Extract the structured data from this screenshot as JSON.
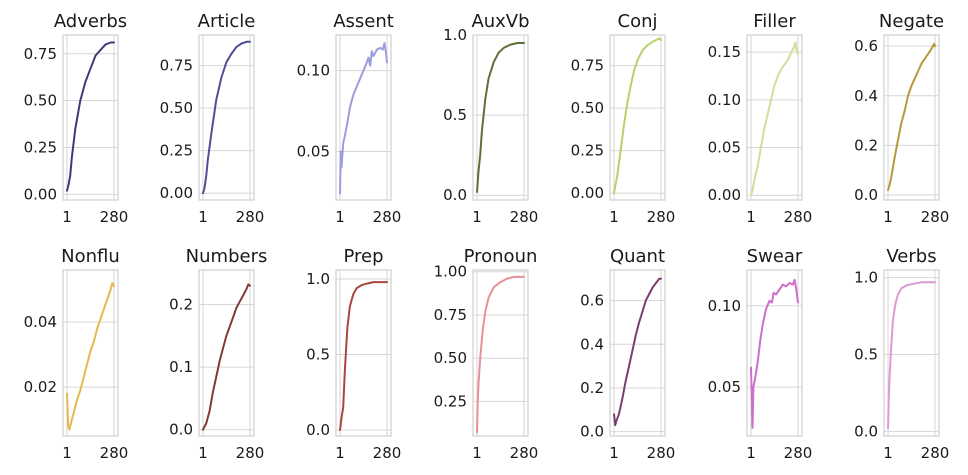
{
  "chart_data": [
    {
      "type": "line",
      "title": "Adverbs",
      "x_ticks": [
        "1",
        "280"
      ],
      "yticks": [
        "0.00",
        "0.25",
        "0.50",
        "0.75"
      ],
      "ylim": [
        -0.03,
        0.85
      ],
      "color": "#3b3b7a",
      "points": [
        [
          1,
          0.02
        ],
        [
          10,
          0.05
        ],
        [
          20,
          0.1
        ],
        [
          30,
          0.2
        ],
        [
          50,
          0.35
        ],
        [
          80,
          0.5
        ],
        [
          110,
          0.6
        ],
        [
          140,
          0.67
        ],
        [
          170,
          0.74
        ],
        [
          200,
          0.77
        ],
        [
          230,
          0.8
        ],
        [
          260,
          0.81
        ],
        [
          280,
          0.81
        ]
      ]
    },
    {
      "type": "line",
      "title": "Article",
      "x_ticks": [
        "1",
        "280"
      ],
      "yticks": [
        "0.00",
        "0.25",
        "0.50",
        "0.75"
      ],
      "ylim": [
        -0.04,
        0.93
      ],
      "color": "#4e4f95",
      "points": [
        [
          1,
          0.0
        ],
        [
          10,
          0.03
        ],
        [
          20,
          0.1
        ],
        [
          30,
          0.2
        ],
        [
          50,
          0.35
        ],
        [
          80,
          0.55
        ],
        [
          110,
          0.68
        ],
        [
          140,
          0.77
        ],
        [
          170,
          0.82
        ],
        [
          200,
          0.86
        ],
        [
          230,
          0.88
        ],
        [
          260,
          0.89
        ],
        [
          280,
          0.89
        ]
      ]
    },
    {
      "type": "line",
      "title": "Assent",
      "x_ticks": [
        "1",
        "280"
      ],
      "yticks": [
        "0.05",
        "0.10"
      ],
      "ylim": [
        0.02,
        0.122
      ],
      "color": "#9b9ddf",
      "points": [
        [
          1,
          0.024
        ],
        [
          5,
          0.05
        ],
        [
          10,
          0.04
        ],
        [
          20,
          0.055
        ],
        [
          40,
          0.065
        ],
        [
          60,
          0.077
        ],
        [
          80,
          0.085
        ],
        [
          100,
          0.09
        ],
        [
          120,
          0.095
        ],
        [
          140,
          0.1
        ],
        [
          160,
          0.105
        ],
        [
          170,
          0.108
        ],
        [
          180,
          0.103
        ],
        [
          190,
          0.112
        ],
        [
          200,
          0.109
        ],
        [
          220,
          0.113
        ],
        [
          240,
          0.114
        ],
        [
          255,
          0.113
        ],
        [
          265,
          0.117
        ],
        [
          275,
          0.11
        ],
        [
          280,
          0.105
        ]
      ]
    },
    {
      "type": "line",
      "title": "AuxVb",
      "x_ticks": [
        "1",
        "280"
      ],
      "yticks": [
        "0.0",
        "0.5",
        "1.0"
      ],
      "ylim": [
        -0.03,
        1.0
      ],
      "color": "#5c7138",
      "points": [
        [
          1,
          0.02
        ],
        [
          10,
          0.15
        ],
        [
          20,
          0.25
        ],
        [
          30,
          0.4
        ],
        [
          50,
          0.6
        ],
        [
          70,
          0.73
        ],
        [
          100,
          0.83
        ],
        [
          130,
          0.89
        ],
        [
          160,
          0.92
        ],
        [
          200,
          0.94
        ],
        [
          240,
          0.95
        ],
        [
          280,
          0.95
        ]
      ]
    },
    {
      "type": "line",
      "title": "Conj",
      "x_ticks": [
        "1",
        "280"
      ],
      "yticks": [
        "0.00",
        "0.25",
        "0.50",
        "0.75"
      ],
      "ylim": [
        -0.04,
        0.93
      ],
      "color": "#b5d26b",
      "points": [
        [
          1,
          0.0
        ],
        [
          10,
          0.05
        ],
        [
          20,
          0.1
        ],
        [
          40,
          0.25
        ],
        [
          60,
          0.4
        ],
        [
          80,
          0.53
        ],
        [
          100,
          0.63
        ],
        [
          120,
          0.72
        ],
        [
          140,
          0.78
        ],
        [
          170,
          0.84
        ],
        [
          200,
          0.87
        ],
        [
          230,
          0.89
        ],
        [
          250,
          0.9
        ],
        [
          270,
          0.91
        ],
        [
          280,
          0.9
        ]
      ]
    },
    {
      "type": "line",
      "title": "Filler",
      "x_ticks": [
        "1",
        "280"
      ],
      "yticks": [
        "0.00",
        "0.05",
        "0.10",
        "0.15"
      ],
      "ylim": [
        -0.005,
        0.168
      ],
      "color": "#cfdf9a",
      "points": [
        [
          1,
          0.0
        ],
        [
          10,
          0.005
        ],
        [
          20,
          0.015
        ],
        [
          40,
          0.03
        ],
        [
          60,
          0.05
        ],
        [
          80,
          0.07
        ],
        [
          100,
          0.085
        ],
        [
          120,
          0.1
        ],
        [
          140,
          0.115
        ],
        [
          160,
          0.125
        ],
        [
          180,
          0.132
        ],
        [
          200,
          0.137
        ],
        [
          220,
          0.142
        ],
        [
          240,
          0.15
        ],
        [
          255,
          0.155
        ],
        [
          265,
          0.16
        ],
        [
          272,
          0.152
        ],
        [
          280,
          0.148
        ]
      ]
    },
    {
      "type": "line",
      "title": "Negate",
      "x_ticks": [
        "1",
        "280"
      ],
      "yticks": [
        "0.0",
        "0.2",
        "0.4",
        "0.6"
      ],
      "ylim": [
        -0.02,
        0.645
      ],
      "color": "#b8993a",
      "points": [
        [
          1,
          0.02
        ],
        [
          10,
          0.04
        ],
        [
          20,
          0.07
        ],
        [
          40,
          0.15
        ],
        [
          60,
          0.22
        ],
        [
          80,
          0.29
        ],
        [
          100,
          0.34
        ],
        [
          120,
          0.4
        ],
        [
          140,
          0.44
        ],
        [
          160,
          0.47
        ],
        [
          180,
          0.5
        ],
        [
          200,
          0.53
        ],
        [
          220,
          0.55
        ],
        [
          240,
          0.57
        ],
        [
          260,
          0.59
        ],
        [
          275,
          0.61
        ],
        [
          280,
          0.6
        ]
      ]
    },
    {
      "type": "line",
      "title": "Nonflu",
      "x_ticks": [
        "1",
        "280"
      ],
      "yticks": [
        "0.02",
        "0.04"
      ],
      "ylim": [
        0.005,
        0.056
      ],
      "color": "#e5b94f",
      "points": [
        [
          1,
          0.018
        ],
        [
          8,
          0.008
        ],
        [
          15,
          0.007
        ],
        [
          25,
          0.009
        ],
        [
          40,
          0.012
        ],
        [
          60,
          0.016
        ],
        [
          80,
          0.019
        ],
        [
          100,
          0.023
        ],
        [
          120,
          0.027
        ],
        [
          140,
          0.031
        ],
        [
          160,
          0.034
        ],
        [
          180,
          0.038
        ],
        [
          200,
          0.041
        ],
        [
          220,
          0.044
        ],
        [
          240,
          0.047
        ],
        [
          260,
          0.05
        ],
        [
          270,
          0.052
        ],
        [
          280,
          0.051
        ]
      ]
    },
    {
      "type": "line",
      "title": "Numbers",
      "x_ticks": [
        "1",
        "280"
      ],
      "yticks": [
        "0.0",
        "0.1",
        "0.2"
      ],
      "ylim": [
        -0.01,
        0.255
      ],
      "color": "#833a37",
      "points": [
        [
          1,
          0.0
        ],
        [
          10,
          0.005
        ],
        [
          20,
          0.01
        ],
        [
          40,
          0.03
        ],
        [
          60,
          0.06
        ],
        [
          80,
          0.085
        ],
        [
          100,
          0.11
        ],
        [
          120,
          0.13
        ],
        [
          140,
          0.15
        ],
        [
          160,
          0.165
        ],
        [
          180,
          0.18
        ],
        [
          200,
          0.195
        ],
        [
          220,
          0.205
        ],
        [
          240,
          0.215
        ],
        [
          260,
          0.225
        ],
        [
          270,
          0.232
        ],
        [
          280,
          0.23
        ]
      ]
    },
    {
      "type": "line",
      "title": "Prep",
      "x_ticks": [
        "1",
        "280"
      ],
      "yticks": [
        "0.0",
        "0.5",
        "1.0"
      ],
      "ylim": [
        -0.04,
        1.06
      ],
      "color": "#a8463f",
      "points": [
        [
          1,
          0.0
        ],
        [
          10,
          0.08
        ],
        [
          20,
          0.15
        ],
        [
          30,
          0.4
        ],
        [
          45,
          0.68
        ],
        [
          60,
          0.82
        ],
        [
          80,
          0.9
        ],
        [
          100,
          0.94
        ],
        [
          130,
          0.96
        ],
        [
          160,
          0.97
        ],
        [
          200,
          0.98
        ],
        [
          240,
          0.98
        ],
        [
          280,
          0.98
        ]
      ]
    },
    {
      "type": "line",
      "title": "Pronoun",
      "x_ticks": [
        "1",
        "280"
      ],
      "yticks": [
        "0.25",
        "0.50",
        "0.75",
        "1.00"
      ],
      "ylim": [
        0.05,
        1.01
      ],
      "color": "#e8909a",
      "points": [
        [
          1,
          0.07
        ],
        [
          5,
          0.25
        ],
        [
          10,
          0.35
        ],
        [
          20,
          0.5
        ],
        [
          35,
          0.66
        ],
        [
          50,
          0.77
        ],
        [
          70,
          0.85
        ],
        [
          100,
          0.91
        ],
        [
          140,
          0.94
        ],
        [
          180,
          0.96
        ],
        [
          220,
          0.97
        ],
        [
          260,
          0.97
        ],
        [
          280,
          0.97
        ]
      ]
    },
    {
      "type": "line",
      "title": "Quant",
      "x_ticks": [
        "1",
        "280"
      ],
      "yticks": [
        "0.0",
        "0.2",
        "0.4",
        "0.6"
      ],
      "ylim": [
        -0.02,
        0.74
      ],
      "color": "#7a3d71",
      "points": [
        [
          1,
          0.08
        ],
        [
          8,
          0.03
        ],
        [
          15,
          0.05
        ],
        [
          30,
          0.08
        ],
        [
          50,
          0.15
        ],
        [
          70,
          0.23
        ],
        [
          90,
          0.3
        ],
        [
          110,
          0.37
        ],
        [
          130,
          0.44
        ],
        [
          150,
          0.5
        ],
        [
          170,
          0.55
        ],
        [
          190,
          0.6
        ],
        [
          210,
          0.63
        ],
        [
          230,
          0.66
        ],
        [
          250,
          0.68
        ],
        [
          270,
          0.7
        ],
        [
          280,
          0.7
        ]
      ]
    },
    {
      "type": "line",
      "title": "Swear",
      "x_ticks": [
        "1",
        "280"
      ],
      "yticks": [
        "0.05",
        "0.10"
      ],
      "ylim": [
        0.02,
        0.122
      ],
      "color": "#cf6ec9",
      "points": [
        [
          1,
          0.062
        ],
        [
          5,
          0.045
        ],
        [
          10,
          0.025
        ],
        [
          15,
          0.05
        ],
        [
          25,
          0.055
        ],
        [
          40,
          0.065
        ],
        [
          55,
          0.078
        ],
        [
          70,
          0.088
        ],
        [
          90,
          0.098
        ],
        [
          110,
          0.103
        ],
        [
          125,
          0.102
        ],
        [
          135,
          0.108
        ],
        [
          150,
          0.107
        ],
        [
          170,
          0.11
        ],
        [
          190,
          0.113
        ],
        [
          210,
          0.112
        ],
        [
          230,
          0.114
        ],
        [
          250,
          0.113
        ],
        [
          260,
          0.116
        ],
        [
          270,
          0.11
        ],
        [
          280,
          0.102
        ]
      ]
    },
    {
      "type": "line",
      "title": "Verbs",
      "x_ticks": [
        "1",
        "280"
      ],
      "yticks": [
        "0.0",
        "0.5",
        "1.0"
      ],
      "ylim": [
        -0.03,
        1.05
      ],
      "color": "#dc9ad5",
      "points": [
        [
          1,
          0.02
        ],
        [
          5,
          0.2
        ],
        [
          10,
          0.35
        ],
        [
          20,
          0.55
        ],
        [
          30,
          0.72
        ],
        [
          45,
          0.83
        ],
        [
          60,
          0.89
        ],
        [
          80,
          0.93
        ],
        [
          110,
          0.95
        ],
        [
          150,
          0.96
        ],
        [
          200,
          0.97
        ],
        [
          250,
          0.97
        ],
        [
          280,
          0.97
        ]
      ]
    }
  ]
}
